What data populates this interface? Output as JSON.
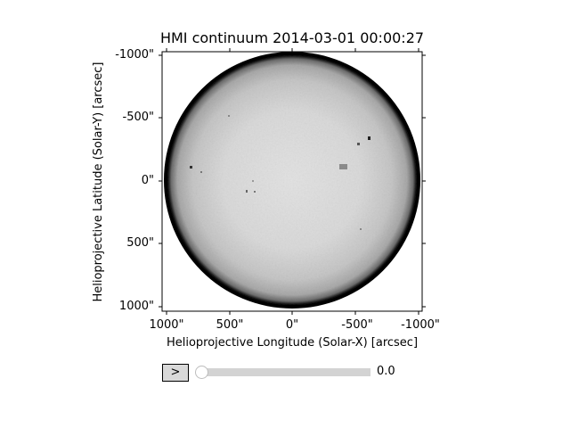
{
  "plot": {
    "title": "HMI continuum 2014-03-01 00:00:27",
    "x_axis_label": "Helioprojective Longitude (Solar-X) [arcsec]",
    "y_axis_label": "Helioprojective Latitude (Solar-Y) [arcsec]",
    "x_ticks": [
      "1000\"",
      "500\"",
      "0\"",
      "-500\"",
      "-1000\""
    ],
    "y_ticks": [
      "-1000\"",
      "-500\"",
      "0\"",
      "500\"",
      "1000\""
    ],
    "colors": {
      "disk_limb": "#000000",
      "disk_center": "#e2e2e2",
      "background": "#ffffff"
    }
  },
  "controls": {
    "play_button_label": ">",
    "slider_value": "0.0",
    "slider_fraction": 0.0
  }
}
